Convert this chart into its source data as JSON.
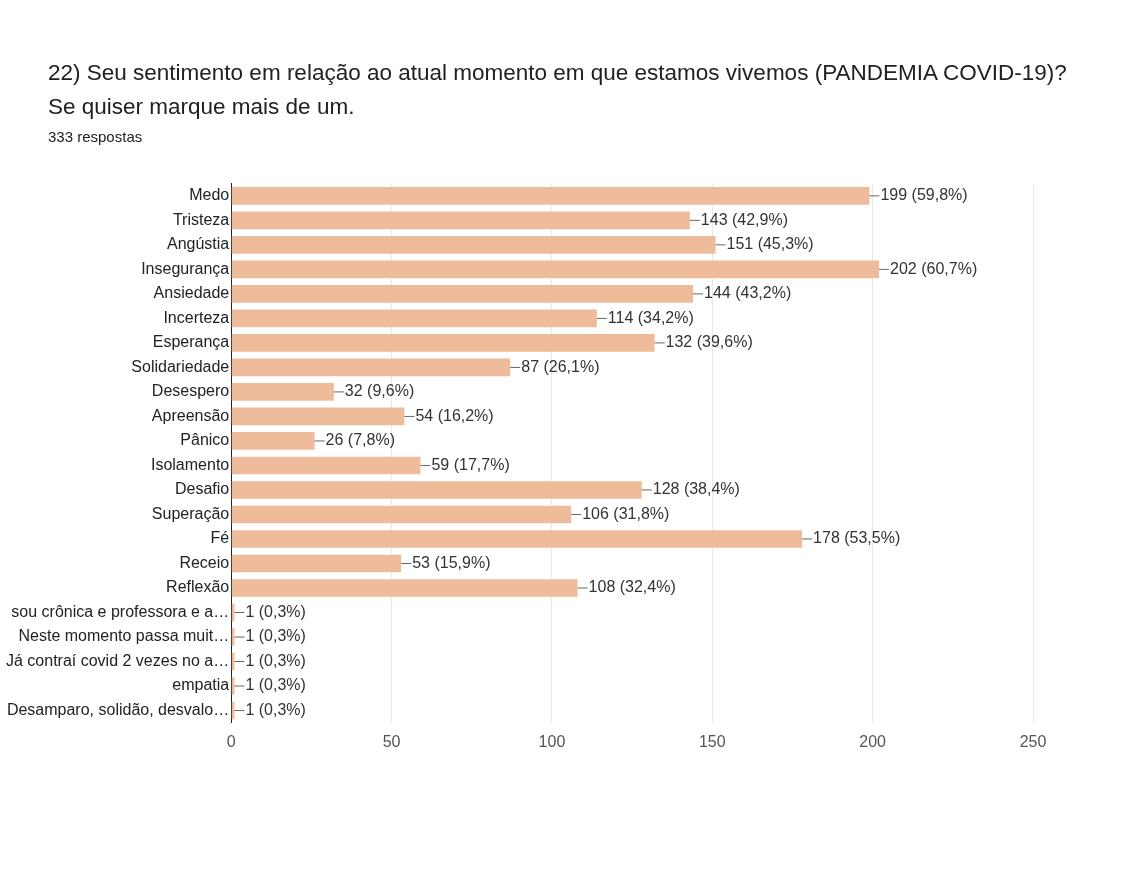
{
  "chart_data": {
    "type": "bar",
    "orientation": "horizontal",
    "title": "22) Seu sentimento em relação ao atual momento em que estamos vivemos (PANDEMIA COVID-19)? Se quiser marque mais de um.",
    "subtitle": "333 respostas",
    "categories": [
      "Medo",
      "Tristeza",
      "Angústia",
      "Insegurança",
      "Ansiedade",
      "Incerteza",
      "Esperança",
      "Solidariedade",
      "Desespero",
      "Apreensão",
      "Pânico",
      "Isolamento",
      "Desafio",
      "Superação",
      "Fé",
      "Receio",
      "Reflexão",
      "sou crônica e professora e a…",
      "Neste momento passa muit…",
      "Já contraí covid 2 vezes no a…",
      "empatia",
      "Desamparo, solidão, desvalo…"
    ],
    "values": [
      199,
      143,
      151,
      202,
      144,
      114,
      132,
      87,
      32,
      54,
      26,
      59,
      128,
      106,
      178,
      53,
      108,
      1,
      1,
      1,
      1,
      1
    ],
    "value_labels": [
      "199 (59,8%)",
      "143 (42,9%)",
      "151 (45,3%)",
      "202 (60,7%)",
      "144 (43,2%)",
      "114 (34,2%)",
      "132 (39,6%)",
      "87 (26,1%)",
      "32 (9,6%)",
      "54 (16,2%)",
      "26 (7,8%)",
      "59 (17,7%)",
      "128 (38,4%)",
      "106 (31,8%)",
      "178 (53,5%)",
      "53 (15,9%)",
      "108 (32,4%)",
      "1 (0,3%)",
      "1 (0,3%)",
      "1 (0,3%)",
      "1 (0,3%)",
      "1 (0,3%)"
    ],
    "color": "#efbc9b",
    "xlim": [
      0,
      250
    ],
    "xticks": [
      0,
      50,
      100,
      150,
      200,
      250
    ],
    "grid": "x"
  }
}
